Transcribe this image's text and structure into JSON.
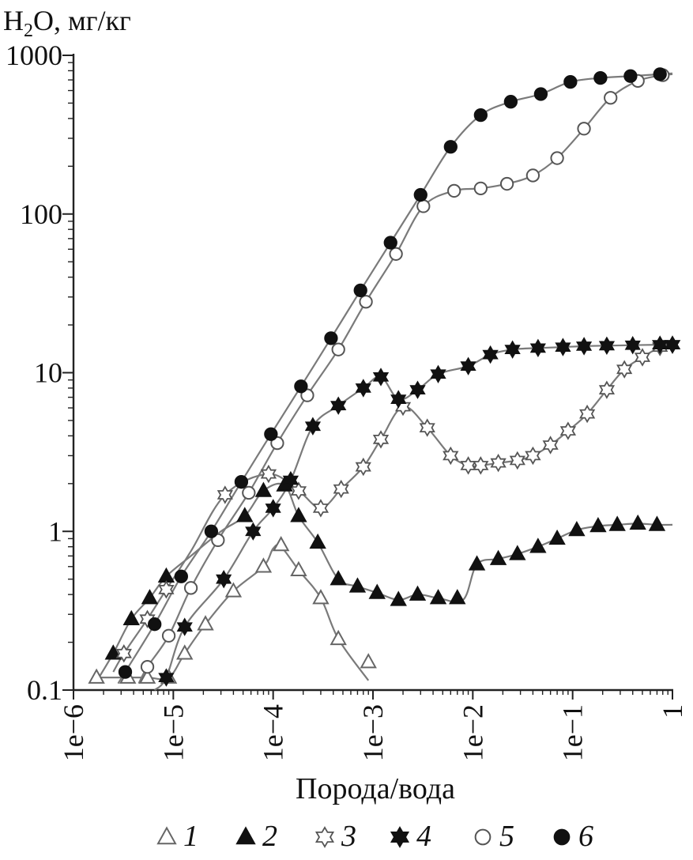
{
  "chart_data": {
    "type": "line",
    "title": "",
    "ylabel_parts": [
      "H",
      "2",
      "O, мг/кг"
    ],
    "xlabel": "Порода/вода",
    "x_scale": "log",
    "y_scale": "log",
    "xlim": [
      1e-06,
      1
    ],
    "ylim": [
      0.1,
      1000
    ],
    "x_tick_labels": [
      "1e−6",
      "1e−5",
      "1e−4",
      "1e−3",
      "1e−2",
      "1e−1",
      "1"
    ],
    "y_tick_labels": [
      "0.1",
      "1",
      "10",
      "100",
      "1000"
    ],
    "series": [
      {
        "name": "1",
        "marker": "triangle-open",
        "x": [
          1.7e-06,
          3.5e-06,
          5.5e-06,
          9e-06,
          1.3e-05,
          2.1e-05,
          4e-05,
          8e-05,
          0.00012,
          0.00018,
          0.0003,
          0.00045,
          0.0009
        ],
        "y": [
          0.12,
          0.12,
          0.12,
          0.12,
          0.17,
          0.26,
          0.42,
          0.6,
          0.82,
          0.57,
          0.38,
          0.21,
          0.15
        ],
        "line_x": [
          1.7e-06,
          3.5e-06,
          5.5e-06,
          9e-06,
          1.3e-05,
          2.1e-05,
          4e-05,
          8e-05,
          0.0001,
          0.00012,
          0.00018,
          0.0003,
          0.00045,
          0.0009
        ],
        "line_y": [
          0.12,
          0.12,
          0.12,
          0.12,
          0.17,
          0.26,
          0.42,
          0.6,
          0.78,
          0.8,
          0.57,
          0.38,
          0.21,
          0.115
        ]
      },
      {
        "name": "2",
        "marker": "triangle-filled",
        "x": [
          2.5e-06,
          3.8e-06,
          5.8e-06,
          8.5e-06,
          5.2e-05,
          8e-05,
          0.00013,
          0.00018,
          0.00028,
          0.00045,
          0.0007,
          0.0011,
          0.0018,
          0.0028,
          0.0045,
          0.007,
          0.011,
          0.018,
          0.028,
          0.045,
          0.07,
          0.11,
          0.18,
          0.28,
          0.45,
          0.7
        ],
        "y": [
          0.17,
          0.28,
          0.38,
          0.52,
          1.25,
          1.8,
          1.95,
          1.25,
          0.85,
          0.5,
          0.45,
          0.41,
          0.37,
          0.4,
          0.38,
          0.38,
          0.62,
          0.67,
          0.72,
          0.8,
          0.9,
          1.02,
          1.08,
          1.1,
          1.12,
          1.1
        ],
        "line_x": [
          1.8e-06,
          2.5e-06,
          3.8e-06,
          5.8e-06,
          8.5e-06,
          1.5e-05,
          3e-05,
          5.2e-05,
          8e-05,
          0.00013,
          0.00018,
          0.00028,
          0.00045,
          0.0007,
          0.0011,
          0.0018,
          0.0028,
          0.0045,
          0.008,
          0.011,
          0.018,
          0.028,
          0.045,
          0.07,
          0.11,
          0.18,
          0.28,
          0.45,
          0.7,
          1
        ],
        "line_y": [
          0.12,
          0.17,
          0.28,
          0.38,
          0.52,
          0.7,
          1.0,
          1.25,
          1.8,
          1.95,
          1.25,
          0.85,
          0.5,
          0.45,
          0.41,
          0.37,
          0.4,
          0.38,
          0.37,
          0.62,
          0.67,
          0.72,
          0.8,
          0.9,
          1.02,
          1.08,
          1.1,
          1.12,
          1.1,
          1.1
        ]
      },
      {
        "name": "3",
        "marker": "star-open",
        "x": [
          3.2e-06,
          5.5e-06,
          8.5e-06,
          3.3e-05,
          9e-05,
          0.00018,
          0.0003,
          0.00048,
          0.0008,
          0.0012,
          0.002,
          0.0035,
          0.006,
          0.009,
          0.012,
          0.018,
          0.028,
          0.04,
          0.06,
          0.09,
          0.14,
          0.22,
          0.33,
          0.5,
          0.75,
          1
        ],
        "y": [
          0.17,
          0.28,
          0.43,
          1.7,
          2.3,
          1.8,
          1.4,
          1.85,
          2.55,
          3.8,
          6.1,
          4.5,
          3.0,
          2.6,
          2.6,
          2.7,
          2.8,
          3.0,
          3.5,
          4.3,
          5.5,
          7.8,
          10.5,
          12.5,
          14.5,
          15.0
        ],
        "line_x": [
          2.5e-06,
          3.2e-06,
          5.5e-06,
          8.5e-06,
          1.5e-05,
          3.3e-05,
          9e-05,
          0.00018,
          0.0003,
          0.00048,
          0.0008,
          0.0012,
          0.002,
          0.0035,
          0.006,
          0.009,
          0.012,
          0.018,
          0.028,
          0.04,
          0.06,
          0.09,
          0.14,
          0.22,
          0.33,
          0.5,
          0.75,
          1
        ],
        "line_y": [
          0.13,
          0.17,
          0.28,
          0.43,
          0.75,
          1.7,
          2.3,
          1.8,
          1.4,
          1.85,
          2.55,
          3.8,
          6.1,
          4.5,
          3.0,
          2.6,
          2.6,
          2.7,
          2.8,
          3.0,
          3.5,
          4.3,
          5.5,
          7.8,
          10.5,
          12.5,
          14.5,
          15.0
        ]
      },
      {
        "name": "4",
        "marker": "star-filled",
        "x": [
          8.5e-06,
          1.3e-05,
          3.2e-05,
          6.3e-05,
          0.0001,
          0.00015,
          0.00025,
          0.00045,
          0.0008,
          0.0012,
          0.0018,
          0.0028,
          0.0045,
          0.009,
          0.015,
          0.025,
          0.045,
          0.08,
          0.13,
          0.22,
          0.4,
          0.75,
          1
        ],
        "y": [
          0.12,
          0.25,
          0.5,
          1.0,
          1.4,
          2.1,
          4.6,
          6.2,
          8.0,
          9.4,
          6.8,
          7.8,
          9.8,
          11.0,
          13.0,
          14.0,
          14.3,
          14.5,
          14.7,
          14.8,
          14.9,
          15.0,
          15.0
        ],
        "line_x": [
          6.5e-06,
          8.5e-06,
          1.3e-05,
          3.2e-05,
          6.3e-05,
          0.0001,
          0.00015,
          0.00025,
          0.00045,
          0.0008,
          0.0012,
          0.0018,
          0.0028,
          0.0045,
          0.009,
          0.015,
          0.025,
          0.045,
          0.08,
          0.13,
          0.22,
          0.4,
          0.75,
          1
        ],
        "line_y": [
          0.1,
          0.12,
          0.25,
          0.5,
          1.0,
          1.4,
          2.1,
          4.6,
          6.2,
          8.0,
          9.4,
          6.8,
          7.8,
          9.8,
          11.0,
          13.0,
          14.0,
          14.3,
          14.5,
          14.7,
          14.8,
          14.9,
          15.0,
          15.0
        ]
      },
      {
        "name": "5",
        "marker": "circle-open",
        "x": [
          5.5e-06,
          9e-06,
          1.5e-05,
          2.8e-05,
          5.7e-05,
          0.00011,
          0.00022,
          0.00045,
          0.00085,
          0.0017,
          0.0032,
          0.0065,
          0.012,
          0.022,
          0.04,
          0.07,
          0.13,
          0.24,
          0.45,
          0.8
        ],
        "y": [
          0.14,
          0.22,
          0.44,
          0.88,
          1.75,
          3.6,
          7.2,
          14.0,
          28.0,
          56.0,
          112.0,
          140.0,
          145.0,
          155.0,
          175.0,
          225.0,
          345.0,
          540.0,
          690.0,
          750.0
        ],
        "line_x": [
          4.5e-06,
          5.5e-06,
          9e-06,
          1.5e-05,
          2.8e-05,
          5.7e-05,
          0.00011,
          0.00022,
          0.00045,
          0.00085,
          0.0017,
          0.0032,
          0.0065,
          0.012,
          0.022,
          0.04,
          0.07,
          0.13,
          0.24,
          0.45,
          0.8,
          1
        ],
        "line_y": [
          0.11,
          0.14,
          0.22,
          0.44,
          0.88,
          1.75,
          3.6,
          7.2,
          14.0,
          28.0,
          56.0,
          112.0,
          140.0,
          145.0,
          155.0,
          175.0,
          225.0,
          345.0,
          540.0,
          690.0,
          750.0,
          760.0
        ]
      },
      {
        "name": "6",
        "marker": "circle-filled",
        "x": [
          3.3e-06,
          6.5e-06,
          1.2e-05,
          2.4e-05,
          4.8e-05,
          9.5e-05,
          0.00019,
          0.00038,
          0.00075,
          0.0015,
          0.003,
          0.006,
          0.012,
          0.024,
          0.048,
          0.095,
          0.19,
          0.38,
          0.75
        ],
        "y": [
          0.13,
          0.26,
          0.52,
          1.0,
          2.05,
          4.1,
          8.2,
          16.5,
          33.0,
          66.0,
          132.0,
          265.0,
          420.0,
          510.0,
          570.0,
          680.0,
          720.0,
          740.0,
          760.0
        ],
        "line_x": [
          2.8e-06,
          3.3e-06,
          6.5e-06,
          1.2e-05,
          2.4e-05,
          4.8e-05,
          9.5e-05,
          0.00019,
          0.00038,
          0.00075,
          0.0015,
          0.003,
          0.006,
          0.012,
          0.024,
          0.048,
          0.095,
          0.19,
          0.38,
          0.75,
          1
        ],
        "line_y": [
          0.11,
          0.13,
          0.26,
          0.52,
          1.0,
          2.05,
          4.1,
          8.2,
          16.5,
          33.0,
          66.0,
          132.0,
          265.0,
          420.0,
          510.0,
          570.0,
          680.0,
          720.0,
          740.0,
          760.0,
          770.0
        ]
      }
    ],
    "colors": {
      "axis": "#222222",
      "line": "#7a7a7a",
      "marker": "#111111"
    },
    "legend_position": "bottom"
  }
}
